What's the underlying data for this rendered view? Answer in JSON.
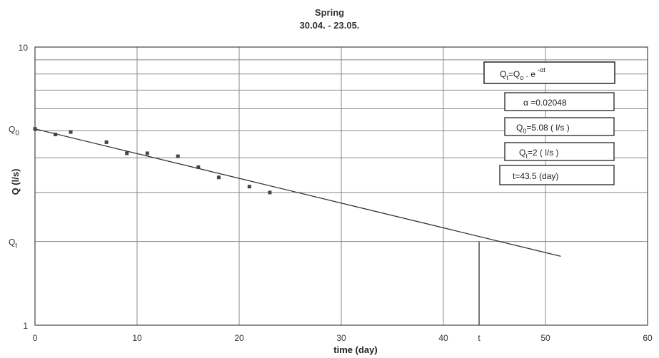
{
  "chart_data": {
    "type": "scatter",
    "title": "Spring",
    "subtitle": "30.04. - 23.05.",
    "xlabel": "time (day)",
    "ylabel": "Q (l/s)",
    "xlim": [
      0,
      60
    ],
    "ylim": [
      1,
      10
    ],
    "y_scale": "log",
    "x_ticks": [
      "0",
      "10",
      "20",
      "30",
      "40",
      "50",
      "60"
    ],
    "y_ticks": [
      "1",
      "10"
    ],
    "x_special_label": "t",
    "x_special_value": 43.5,
    "y_special_labels": [
      {
        "label": "Q0",
        "value": 5.08
      },
      {
        "label": "Qt",
        "value": 2
      }
    ],
    "grid": true,
    "series": [
      {
        "points": [
          {
            "x": 0,
            "y": 5.08
          },
          {
            "x": 2,
            "y": 4.85
          },
          {
            "x": 3.5,
            "y": 4.95
          },
          {
            "x": 7,
            "y": 4.55
          },
          {
            "x": 9,
            "y": 4.15
          },
          {
            "x": 11,
            "y": 4.15
          },
          {
            "x": 14,
            "y": 4.05
          },
          {
            "x": 16,
            "y": 3.7
          },
          {
            "x": 18,
            "y": 3.4
          },
          {
            "x": 21,
            "y": 3.15
          },
          {
            "x": 23,
            "y": 3.0
          }
        ]
      }
    ],
    "fit_line": {
      "x_start": 0,
      "x_end": 51.5,
      "q0": 5.08,
      "alpha": 0.02048
    },
    "annotations": [
      {
        "id": "formula",
        "text": "Qt=Qo . e -αt",
        "base": "Q",
        "sub1": "t",
        "mid": "=Q",
        "sub2": "o",
        "mid2": " . e ",
        "sup": "-αt"
      },
      {
        "id": "alpha",
        "text": "α =0.02048"
      },
      {
        "id": "q0",
        "text": "Q0=5.08 ( l/s )",
        "base": "Q",
        "sub": "0",
        "rest": "=5.08 ( l/s )"
      },
      {
        "id": "qt",
        "text": "Qt=2 ( l/s )",
        "base": "Q",
        "sub": "t",
        "rest": "=2 ( l/s )"
      },
      {
        "id": "t",
        "text": "t=43.5 (day)"
      }
    ]
  }
}
